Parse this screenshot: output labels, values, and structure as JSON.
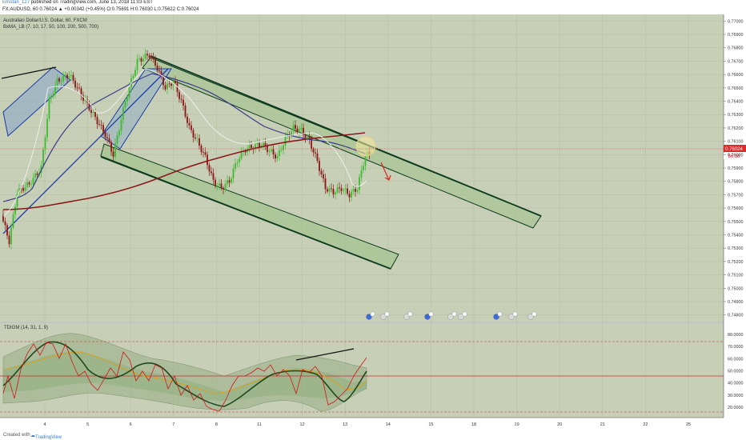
{
  "header": {
    "author": "Ernstan_127",
    "published": "published on TradingView.com, June 13, 2018 11:03 EST",
    "quote": "FX:AUDUSD, 60  0.76024  ▲ +0.00342 (+0.45%)  O:0.75691  H:0.76030  L:0.75622  C:0.76024"
  },
  "legend": {
    "symbol": "Australian Dollar/U.S. Dollar, 60, FXCM",
    "indicator": "BxMA_LB (7, 10, 17, 50, 100, 200, 500, 700)"
  },
  "oscillator": {
    "label": "TDIGM (14, 31, 1, 9)",
    "ticks": [
      "80.0000",
      "70.0000",
      "60.0000",
      "50.0000",
      "40.0000",
      "30.0000",
      "20.0000"
    ]
  },
  "price_axis": {
    "ticks": [
      "0.77000",
      "0.76900",
      "0.76800",
      "0.76700",
      "0.76600",
      "0.76500",
      "0.76400",
      "0.76300",
      "0.76200",
      "0.76100",
      "0.76000",
      "0.75900",
      "0.75800",
      "0.75700",
      "0.75600",
      "0.75500",
      "0.75400",
      "0.75300",
      "0.75200",
      "0.75100",
      "0.75000",
      "0.74900",
      "0.74800"
    ],
    "last_price": "0.76024",
    "countdown": "56:38"
  },
  "time_axis": {
    "ticks": [
      "4",
      "5",
      "6",
      "7",
      "8",
      "11",
      "12",
      "13",
      "14",
      "15",
      "18",
      "19",
      "20",
      "21",
      "22",
      "25"
    ]
  },
  "footer": {
    "created_with": "Created with",
    "brand": "TradingView"
  },
  "colors": {
    "chart_bg": "#c7cfb7",
    "bull": "#3dbb2f",
    "bear": "#8a1515",
    "channel": "#0e3b1e",
    "ma_red": "#8b1a1a",
    "ma_blue": "#3c3c8a",
    "uptrend_channel": "#1b3ca8"
  },
  "chart_data": {
    "type": "candlestick",
    "title": "Australian Dollar/U.S. Dollar, 60, FXCM",
    "xlabel": "",
    "ylabel": "",
    "ylim": [
      0.7475,
      0.7705
    ],
    "grid": true,
    "x_ticks": [
      "4",
      "5",
      "6",
      "7",
      "8",
      "11",
      "12",
      "13",
      "14",
      "15",
      "18",
      "19",
      "20",
      "21",
      "22",
      "25"
    ],
    "close_series": [
      {
        "t": 0,
        "c": 0.7555
      },
      {
        "t": 4,
        "c": 0.7535
      },
      {
        "t": 8,
        "c": 0.7572
      },
      {
        "t": 14,
        "c": 0.7578
      },
      {
        "t": 20,
        "c": 0.759
      },
      {
        "t": 24,
        "c": 0.764
      },
      {
        "t": 28,
        "c": 0.7655
      },
      {
        "t": 34,
        "c": 0.766
      },
      {
        "t": 40,
        "c": 0.7645
      },
      {
        "t": 46,
        "c": 0.763
      },
      {
        "t": 52,
        "c": 0.7615
      },
      {
        "t": 56,
        "c": 0.76
      },
      {
        "t": 62,
        "c": 0.764
      },
      {
        "t": 68,
        "c": 0.767
      },
      {
        "t": 74,
        "c": 0.7675
      },
      {
        "t": 78,
        "c": 0.7665
      },
      {
        "t": 82,
        "c": 0.765
      },
      {
        "t": 86,
        "c": 0.7655
      },
      {
        "t": 90,
        "c": 0.764
      },
      {
        "t": 94,
        "c": 0.762
      },
      {
        "t": 98,
        "c": 0.761
      },
      {
        "t": 102,
        "c": 0.7598
      },
      {
        "t": 106,
        "c": 0.758
      },
      {
        "t": 110,
        "c": 0.7575
      },
      {
        "t": 114,
        "c": 0.758
      },
      {
        "t": 118,
        "c": 0.7596
      },
      {
        "t": 122,
        "c": 0.7604
      },
      {
        "t": 126,
        "c": 0.7606
      },
      {
        "t": 130,
        "c": 0.7608
      },
      {
        "t": 134,
        "c": 0.7603
      },
      {
        "t": 138,
        "c": 0.7598
      },
      {
        "t": 142,
        "c": 0.7612
      },
      {
        "t": 146,
        "c": 0.762
      },
      {
        "t": 150,
        "c": 0.7618
      },
      {
        "t": 154,
        "c": 0.761
      },
      {
        "t": 158,
        "c": 0.7595
      },
      {
        "t": 162,
        "c": 0.7575
      },
      {
        "t": 166,
        "c": 0.7572
      },
      {
        "t": 170,
        "c": 0.7575
      },
      {
        "t": 174,
        "c": 0.757
      },
      {
        "t": 178,
        "c": 0.7575
      },
      {
        "t": 182,
        "c": 0.76
      }
    ],
    "annotations": [
      "descending channel",
      "ascending channel",
      "resistance circle",
      "down arrow",
      "TDI bearish divergence line"
    ]
  }
}
